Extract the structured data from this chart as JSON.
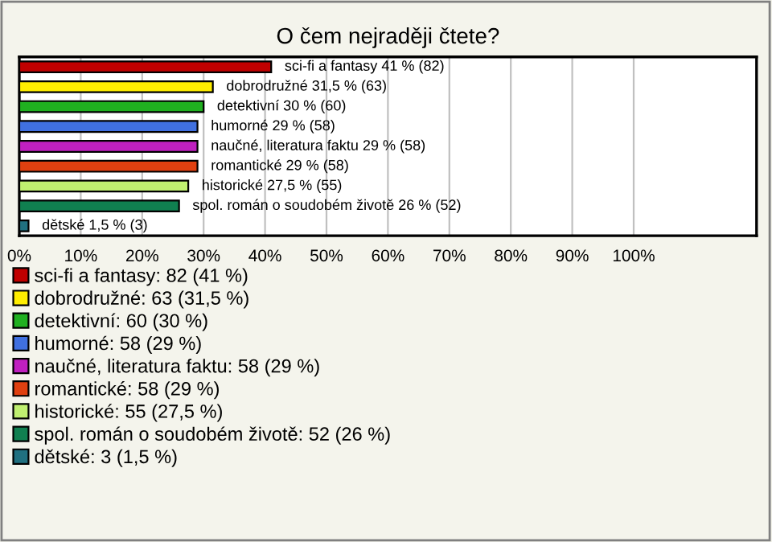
{
  "chart_data": {
    "type": "bar",
    "orientation": "horizontal",
    "title": "O čem nejraději čtete?",
    "categories": [
      null,
      null,
      null,
      null,
      null,
      null,
      null,
      null,
      null
    ],
    "series": [
      {
        "name": "sci-fi a fantasy: 82 (41 %)",
        "color": "#c00000",
        "values": [
          41,
          null,
          null,
          null,
          null,
          null,
          null,
          null,
          null
        ],
        "value_labels": [
          "sci-fi a fantasy 41 % (82)",
          null,
          null,
          null,
          null,
          null,
          null,
          null,
          null
        ]
      },
      {
        "name": "dobrodružné: 63 (31,5 %)",
        "color": "#ffee00",
        "values": [
          null,
          31.5,
          null,
          null,
          null,
          null,
          null,
          null,
          null
        ],
        "value_labels": [
          null,
          "dobrodružné 31,5 % (63)",
          null,
          null,
          null,
          null,
          null,
          null,
          null
        ]
      },
      {
        "name": "detektivní: 60 (30 %)",
        "color": "#20b020",
        "values": [
          null,
          null,
          30,
          null,
          null,
          null,
          null,
          null,
          null
        ],
        "value_labels": [
          null,
          null,
          "detektivní 30 % (60)",
          null,
          null,
          null,
          null,
          null,
          null
        ]
      },
      {
        "name": "humorné: 58 (29 %)",
        "color": "#4070e0",
        "values": [
          null,
          null,
          null,
          29,
          null,
          null,
          null,
          null,
          null
        ],
        "value_labels": [
          null,
          null,
          null,
          "humorné 29 % (58)",
          null,
          null,
          null,
          null,
          null
        ]
      },
      {
        "name": "naučné, literatura faktu: 58 (29 %)",
        "color": "#c020c0",
        "values": [
          null,
          null,
          null,
          null,
          29,
          null,
          null,
          null,
          null
        ],
        "value_labels": [
          null,
          null,
          null,
          null,
          "naučné, literatura faktu 29 % (58)",
          null,
          null,
          null,
          null
        ]
      },
      {
        "name": "romantické: 58 (29 %)",
        "color": "#e04010",
        "values": [
          null,
          null,
          null,
          null,
          null,
          29,
          null,
          null,
          null
        ],
        "value_labels": [
          null,
          null,
          null,
          null,
          null,
          "romantické 29 % (58)",
          null,
          null,
          null
        ]
      },
      {
        "name": "historické: 55 (27,5 %)",
        "color": "#c0f070",
        "values": [
          null,
          null,
          null,
          null,
          null,
          null,
          27.5,
          null,
          null
        ],
        "value_labels": [
          null,
          null,
          null,
          null,
          null,
          null,
          "historické 27,5 % (55)",
          null,
          null
        ]
      },
      {
        "name": "spol. román o soudobém životě: 52 (26 %)",
        "color": "#108050",
        "values": [
          null,
          null,
          null,
          null,
          null,
          null,
          null,
          26,
          null
        ],
        "value_labels": [
          null,
          null,
          null,
          null,
          null,
          null,
          null,
          "spol. román o soudobém životě 26 % (52)",
          null
        ]
      },
      {
        "name": "dětské: 3 (1,5 %)",
        "color": "#207080",
        "values": [
          null,
          null,
          null,
          null,
          null,
          null,
          null,
          null,
          1.5
        ],
        "value_labels": [
          null,
          null,
          null,
          null,
          null,
          null,
          null,
          null,
          "dětské 1,5 % (3)"
        ]
      }
    ],
    "xlim": [
      0,
      120
    ],
    "xticks": [
      {
        "value": 0,
        "label": "0%"
      },
      {
        "value": 10,
        "label": "10%"
      },
      {
        "value": 20,
        "label": "20%"
      },
      {
        "value": 30,
        "label": "30%"
      },
      {
        "value": 40,
        "label": "40%"
      },
      {
        "value": 50,
        "label": "50%"
      },
      {
        "value": 60,
        "label": "60%"
      },
      {
        "value": 70,
        "label": "70%"
      },
      {
        "value": 80,
        "label": "80%"
      },
      {
        "value": 90,
        "label": "90%"
      },
      {
        "value": 100,
        "label": "100%"
      }
    ],
    "grid": "x",
    "legend": "bottom"
  }
}
